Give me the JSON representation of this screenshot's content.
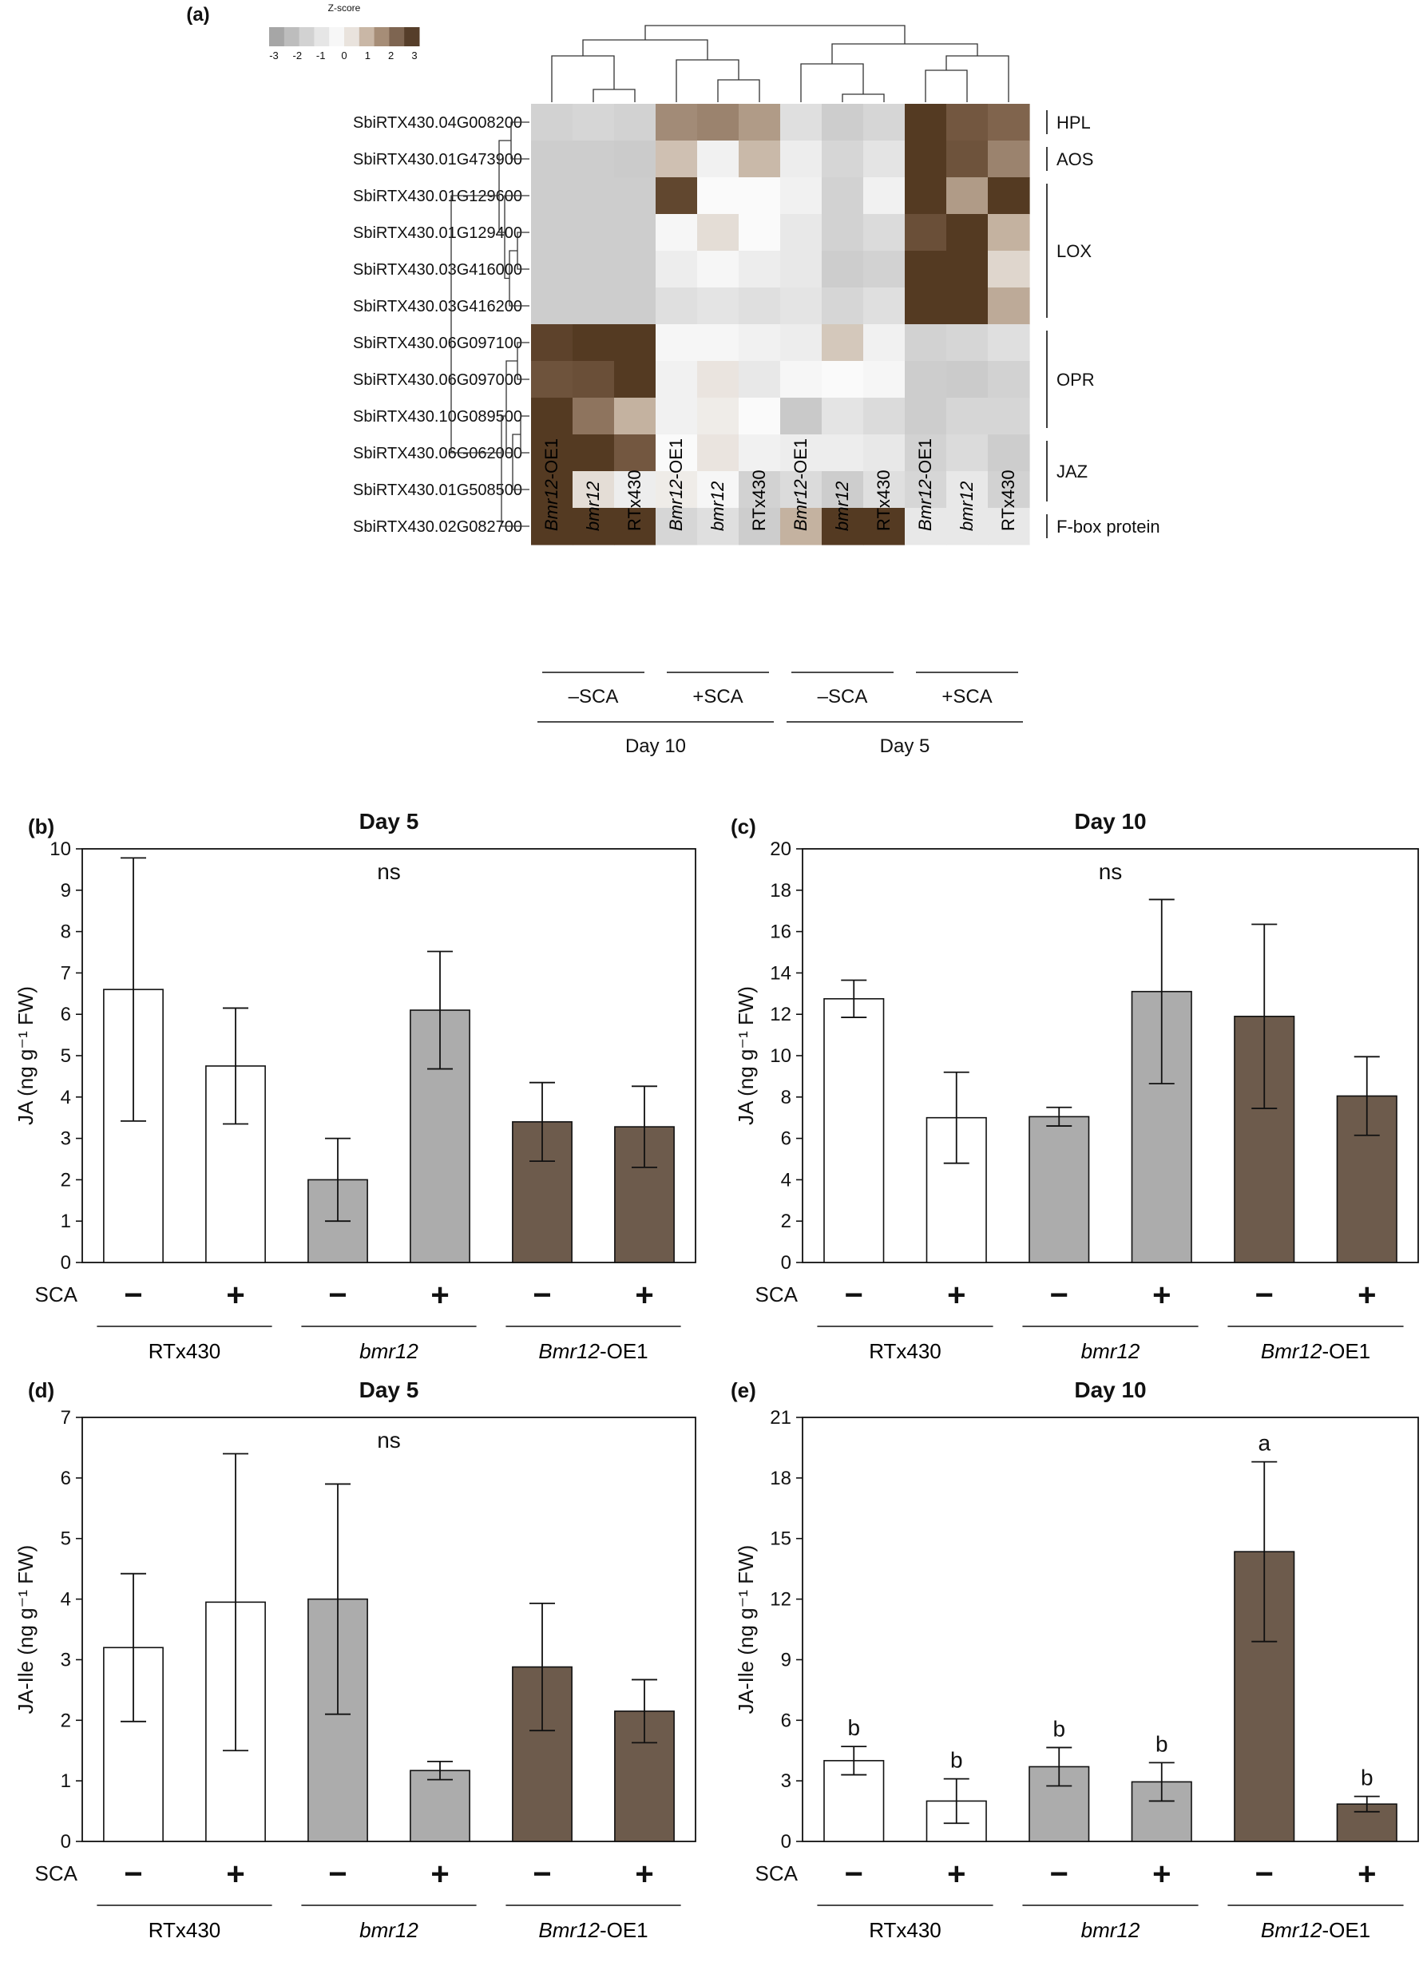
{
  "chart_data": [
    {
      "panel": "(a)",
      "type": "heatmap",
      "colorbar": {
        "title": "Z-score",
        "ticks": [
          "-3",
          "-2",
          "-1",
          "0",
          "1",
          "2",
          "3"
        ],
        "colors": [
          "#a6a6a6",
          "#bdbdbd",
          "#d2d2d2",
          "#e6e6e6",
          "#f7f7f7",
          "#e9e3dd",
          "#c9b7a6",
          "#a68d77",
          "#7e6551",
          "#563e2a"
        ]
      },
      "rows": [
        "SbiRTX430.04G008200",
        "SbiRTX430.01G473900",
        "SbiRTX430.01G129600",
        "SbiRTX430.01G129400",
        "SbiRTX430.03G416000",
        "SbiRTX430.03G416200",
        "SbiRTX430.06G097100",
        "SbiRTX430.06G097000",
        "SbiRTX430.10G089500",
        "SbiRTX430.06G062000",
        "SbiRTX430.01G508500",
        "SbiRTX430.02G082700"
      ],
      "columns": [
        "Bmr12-OE1",
        "bmr12",
        "RTx430",
        "Bmr12-OE1",
        "bmr12",
        "RTx430",
        "Bmr12-OE1",
        "bmr12",
        "RTx430",
        "Bmr12-OE1",
        "bmr12",
        "RTx430"
      ],
      "column_italic": [
        true,
        true,
        false,
        true,
        true,
        false,
        true,
        true,
        false,
        true,
        true,
        false
      ],
      "column_groups": [
        {
          "label": "–SCA",
          "start": 0,
          "end": 2
        },
        {
          "label": "+SCA",
          "start": 3,
          "end": 5
        },
        {
          "label": "–SCA",
          "start": 6,
          "end": 8
        },
        {
          "label": "+SCA",
          "start": 9,
          "end": 11
        }
      ],
      "day_groups": [
        {
          "label": "Day 10",
          "start": 0,
          "end": 5
        },
        {
          "label": "Day 5",
          "start": 6,
          "end": 11
        }
      ],
      "gene_groups": [
        {
          "label": "HPL",
          "start": 0,
          "end": 0
        },
        {
          "label": "AOS",
          "start": 1,
          "end": 1
        },
        {
          "label": "LOX",
          "start": 2,
          "end": 5
        },
        {
          "label": "OPR",
          "start": 6,
          "end": 8
        },
        {
          "label": "JAZ",
          "start": 9,
          "end": 10
        },
        {
          "label": "F-box protein",
          "start": 11,
          "end": 11
        }
      ],
      "values": [
        [
          -0.9,
          -0.8,
          -0.9,
          1.5,
          1.6,
          1.3,
          -0.6,
          -1.0,
          -0.8,
          3.0,
          2.3,
          2.0
        ],
        [
          -1.0,
          -1.0,
          -1.1,
          0.8,
          -0.2,
          0.9,
          -0.3,
          -0.8,
          -0.5,
          3.0,
          2.4,
          1.6
        ],
        [
          -1.0,
          -1.0,
          -1.0,
          2.7,
          0.0,
          0.0,
          -0.2,
          -0.9,
          -0.2,
          3.0,
          1.3,
          3.0
        ],
        [
          -1.0,
          -1.0,
          -1.0,
          -0.1,
          0.4,
          0.0,
          -0.4,
          -0.9,
          -0.7,
          2.5,
          3.0,
          1.0
        ],
        [
          -1.0,
          -1.0,
          -1.0,
          -0.3,
          -0.1,
          -0.3,
          -0.4,
          -1.0,
          -0.9,
          3.0,
          3.0,
          0.5
        ],
        [
          -1.0,
          -1.0,
          -1.0,
          -0.6,
          -0.5,
          -0.6,
          -0.5,
          -0.8,
          -0.6,
          3.0,
          3.0,
          1.1
        ],
        [
          2.8,
          3.0,
          3.0,
          -0.1,
          -0.1,
          -0.2,
          -0.3,
          0.7,
          -0.2,
          -0.9,
          -0.8,
          -0.6
        ],
        [
          2.4,
          2.5,
          3.0,
          -0.2,
          0.3,
          -0.4,
          -0.1,
          0.0,
          -0.1,
          -1.0,
          -1.1,
          -0.9
        ],
        [
          3.0,
          1.8,
          1.0,
          -0.2,
          0.2,
          0.0,
          -1.2,
          -0.5,
          -0.7,
          -1.0,
          -0.8,
          -0.8
        ],
        [
          3.0,
          3.0,
          2.3,
          0.0,
          0.3,
          -0.2,
          -0.3,
          -0.3,
          -0.4,
          -0.9,
          -0.7,
          -1.0
        ],
        [
          3.0,
          0.4,
          -0.3,
          0.2,
          -0.1,
          -0.9,
          -0.7,
          -1.0,
          -0.6,
          -0.8,
          -0.4,
          -0.9
        ],
        [
          3.0,
          3.0,
          3.0,
          -0.8,
          -0.6,
          -1.0,
          1.0,
          3.0,
          3.0,
          -0.4,
          -0.4,
          -0.4
        ]
      ]
    },
    {
      "panel": "(b)",
      "type": "bar",
      "title": "Day 5",
      "ylabel": "JA (ng g⁻¹ FW)",
      "ylim": [
        0,
        10
      ],
      "yticks": [
        0,
        1,
        2,
        3,
        4,
        5,
        6,
        7,
        8,
        9,
        10
      ],
      "annotation": "ns",
      "treatment_label": "SCA",
      "sca": [
        "−",
        "+",
        "−",
        "+",
        "−",
        "+"
      ],
      "groups": [
        {
          "label": "RTx430",
          "italic": ""
        },
        {
          "label": "",
          "italic": "bmr12"
        },
        {
          "label": "-OE1",
          "italic": "Bmr12"
        }
      ],
      "values": [
        6.6,
        4.75,
        2.0,
        6.1,
        3.4,
        3.28
      ],
      "errors": [
        3.18,
        1.4,
        1.0,
        1.42,
        0.95,
        0.98
      ],
      "letters": [
        "",
        "",
        "",
        "",
        "",
        ""
      ],
      "colors": [
        "#ffffff",
        "#ffffff",
        "#acacac",
        "#acacac",
        "#6d5b4c",
        "#6d5b4c"
      ]
    },
    {
      "panel": "(c)",
      "type": "bar",
      "title": "Day 10",
      "ylabel": "JA (ng g⁻¹ FW)",
      "ylim": [
        0,
        20
      ],
      "yticks": [
        0,
        2,
        4,
        6,
        8,
        10,
        12,
        14,
        16,
        18,
        20
      ],
      "annotation": "ns",
      "treatment_label": "SCA",
      "sca": [
        "−",
        "+",
        "−",
        "+",
        "−",
        "+"
      ],
      "groups": [
        {
          "label": "RTx430",
          "italic": ""
        },
        {
          "label": "",
          "italic": "bmr12"
        },
        {
          "label": "-OE1",
          "italic": "Bmr12"
        }
      ],
      "values": [
        12.75,
        7.0,
        7.05,
        13.1,
        11.9,
        8.05
      ],
      "errors": [
        0.9,
        2.2,
        0.45,
        4.45,
        4.45,
        1.9
      ],
      "letters": [
        "",
        "",
        "",
        "",
        "",
        ""
      ],
      "colors": [
        "#ffffff",
        "#ffffff",
        "#acacac",
        "#acacac",
        "#6d5b4c",
        "#6d5b4c"
      ]
    },
    {
      "panel": "(d)",
      "type": "bar",
      "title": "Day 5",
      "ylabel": "JA-Ile (ng g⁻¹ FW)",
      "ylim": [
        0,
        7
      ],
      "yticks": [
        0,
        1,
        2,
        3,
        4,
        5,
        6,
        7
      ],
      "annotation": "ns",
      "treatment_label": "SCA",
      "sca": [
        "−",
        "+",
        "−",
        "+",
        "−",
        "+"
      ],
      "groups": [
        {
          "label": "RTx430",
          "italic": ""
        },
        {
          "label": "",
          "italic": "bmr12"
        },
        {
          "label": "-OE1",
          "italic": "Bmr12"
        }
      ],
      "values": [
        3.2,
        3.95,
        4.0,
        1.17,
        2.88,
        2.15
      ],
      "errors": [
        1.22,
        2.45,
        1.9,
        0.15,
        1.05,
        0.52
      ],
      "letters": [
        "",
        "",
        "",
        "",
        "",
        ""
      ],
      "colors": [
        "#ffffff",
        "#ffffff",
        "#acacac",
        "#acacac",
        "#6d5b4c",
        "#6d5b4c"
      ]
    },
    {
      "panel": "(e)",
      "type": "bar",
      "title": "Day 10",
      "ylabel": "JA-Ile (ng g⁻¹ FW)",
      "ylim": [
        0,
        21
      ],
      "yticks": [
        0,
        3,
        6,
        9,
        12,
        15,
        18,
        21
      ],
      "annotation": "",
      "treatment_label": "SCA",
      "sca": [
        "−",
        "+",
        "−",
        "+",
        "−",
        "+"
      ],
      "groups": [
        {
          "label": "RTx430",
          "italic": ""
        },
        {
          "label": "",
          "italic": "bmr12"
        },
        {
          "label": "-OE1",
          "italic": "Bmr12"
        }
      ],
      "values": [
        4.0,
        2.0,
        3.7,
        2.95,
        14.35,
        1.85
      ],
      "errors": [
        0.7,
        1.1,
        0.95,
        0.95,
        4.45,
        0.38
      ],
      "letters": [
        "b",
        "b",
        "b",
        "b",
        "a",
        "b"
      ],
      "colors": [
        "#ffffff",
        "#ffffff",
        "#acacac",
        "#acacac",
        "#6d5b4c",
        "#6d5b4c"
      ]
    }
  ]
}
